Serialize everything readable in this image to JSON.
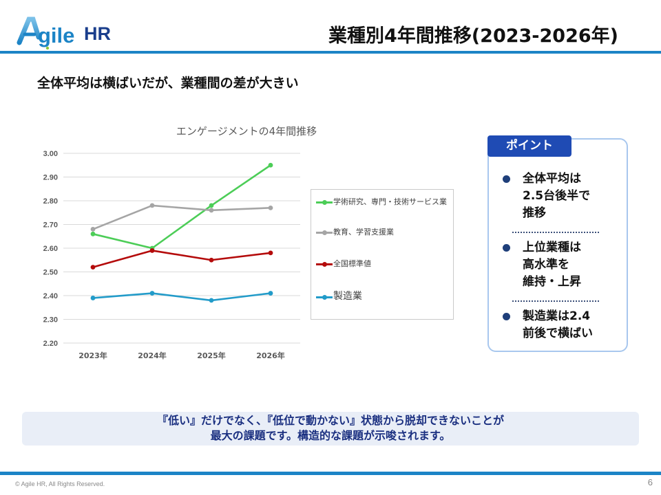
{
  "header": {
    "logo_text": "Agile HR",
    "title": "業種別4年間推移(2023-2026年)"
  },
  "subtitle": "全体平均は横ばいだが、業種間の差が大きい",
  "chart_data": {
    "type": "line",
    "title": "エンゲージメントの4年間推移",
    "xlabel": "",
    "ylabel": "",
    "categories": [
      "2023年",
      "2024年",
      "2025年",
      "2026年"
    ],
    "ylim": [
      2.2,
      3.0
    ],
    "yticks": [
      "3.00",
      "2.90",
      "2.80",
      "2.70",
      "2.60",
      "2.50",
      "2.40",
      "2.30",
      "2.20"
    ],
    "grid": true,
    "legend_position": "right",
    "series": [
      {
        "name": "学術研究、専門・技術サービス業",
        "color": "#4ccd57",
        "values": [
          2.66,
          2.6,
          2.78,
          2.95
        ]
      },
      {
        "name": "教育、学習支援業",
        "color": "#a5a5a5",
        "values": [
          2.68,
          2.78,
          2.76,
          2.77
        ]
      },
      {
        "name": "全国標準値",
        "color": "#b40b0b",
        "values": [
          2.52,
          2.59,
          2.55,
          2.58
        ]
      },
      {
        "name": "製造業",
        "color": "#229bc9",
        "values": [
          2.39,
          2.41,
          2.38,
          2.41
        ]
      }
    ]
  },
  "points": {
    "tab_label": "ポイント",
    "items": [
      {
        "lines": [
          "全体平均は",
          "2.5台後半で",
          "推移"
        ]
      },
      {
        "lines": [
          "上位業種は",
          "高水準を",
          "維持・上昇"
        ]
      },
      {
        "lines": [
          "製造業は2.4",
          "前後で横ばい"
        ]
      }
    ]
  },
  "conclusion": {
    "line1": "『低い』だけでなく、『低位で動かない』状態から脱却できないことが",
    "line2": "最大の課題です。構造的な課題が示唆されます。"
  },
  "footer": {
    "copyright": "© Agile HR, All Rights Reserved.",
    "page_number": "6"
  },
  "colors": {
    "accent_blue": "#1c84c6",
    "navy": "#1f4bb4",
    "logo_green": "#8cc63f"
  }
}
